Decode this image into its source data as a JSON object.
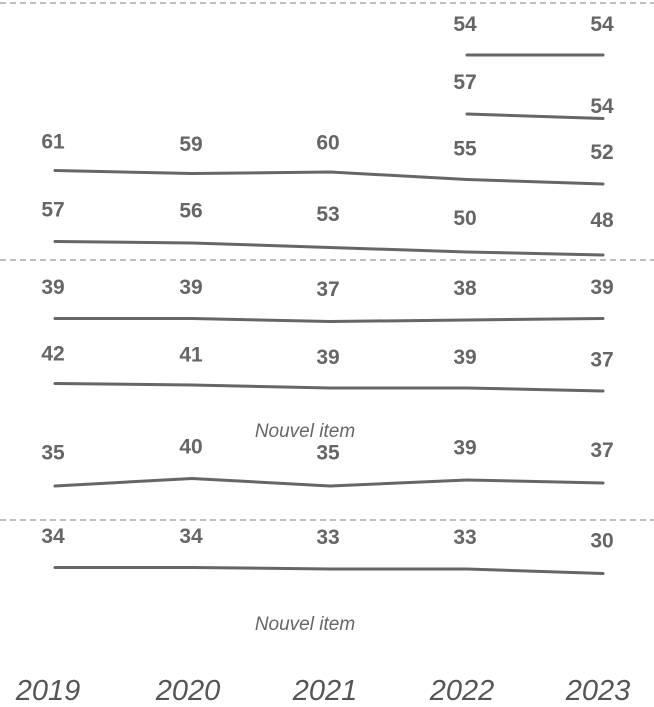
{
  "chart_data": {
    "type": "line",
    "x": [
      "2019",
      "2020",
      "2021",
      "2022",
      "2023"
    ],
    "series": [
      {
        "values": [
          null,
          null,
          null,
          54,
          54
        ]
      },
      {
        "values": [
          null,
          null,
          null,
          57,
          54
        ]
      },
      {
        "values": [
          61,
          59,
          60,
          55,
          52
        ]
      },
      {
        "values": [
          57,
          56,
          53,
          50,
          48
        ]
      },
      {
        "values": [
          39,
          39,
          37,
          38,
          39
        ]
      },
      {
        "values": [
          42,
          41,
          39,
          39,
          37
        ]
      },
      {
        "values": [
          35,
          40,
          35,
          39,
          37
        ]
      },
      {
        "values": [
          34,
          34,
          33,
          33,
          30
        ]
      }
    ],
    "annotations": [
      "Nouvel item",
      "Nouvel item"
    ],
    "grid": false,
    "legend": "none",
    "line_color": "#666666",
    "label_color": "#666666",
    "separator_color": "#aaaaaa"
  }
}
